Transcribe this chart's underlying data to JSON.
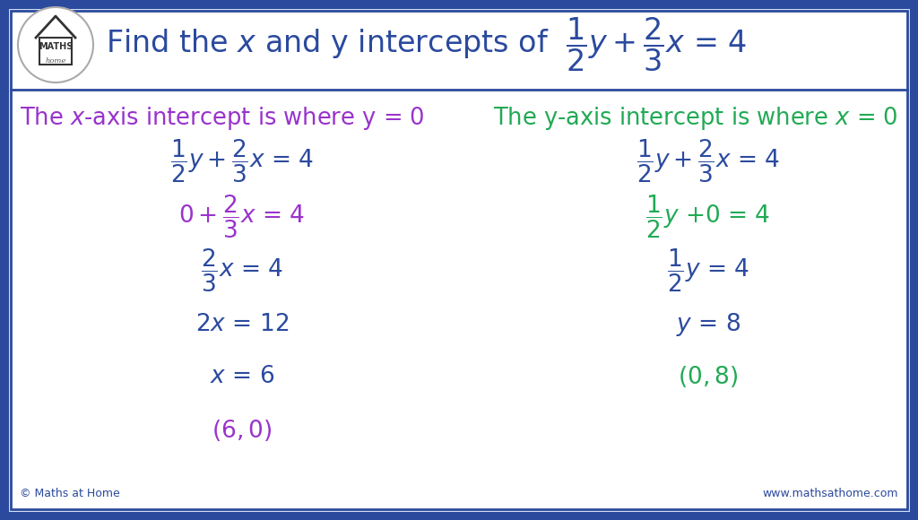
{
  "bg_color": "#dce8f5",
  "border_outer_color": "#2b4a9e",
  "border_inner_color": "#2b4a9e",
  "white": "#ffffff",
  "purple_color": "#9933cc",
  "green_color": "#22aa55",
  "blue_color": "#2b4a9e",
  "footer_left": "© Maths at Home",
  "footer_right": "www.mathsathome.com",
  "figsize": [
    10.24,
    5.8
  ],
  "dpi": 100
}
